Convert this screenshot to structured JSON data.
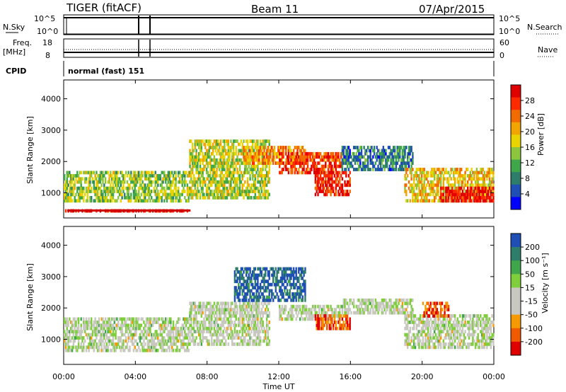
{
  "header": {
    "radar": "TIGER (fitACF)",
    "beam": "Beam 11",
    "date": "07/Apr/2015"
  },
  "top_panels": {
    "nsky_label": "N.Sky",
    "nsearch_label": "N.Search",
    "nsky_ticks": [
      "10^5",
      "10^0"
    ],
    "nsky_ticks_right": [
      "10^5",
      "10^0"
    ],
    "freq_label": "Freq.",
    "freq_unit": "[MHz]",
    "freq_ticks": [
      "18",
      "8"
    ],
    "nave_label": "Nave",
    "nave_ticks": [
      "60",
      "0"
    ],
    "cpid_label": "CPID",
    "cpid_value": "normal (fast) 151"
  },
  "chart_data": [
    {
      "type": "heatmap",
      "panel": "power",
      "xlabel": "",
      "ylabel": "Slant Range [km]",
      "ylim": [
        200,
        4600
      ],
      "yticks": [
        "1000",
        "2000",
        "3000",
        "4000"
      ],
      "colorbar_label": "Power [dB]",
      "colorbar_ticks": [
        "28",
        "24",
        "20",
        "16",
        "12",
        "8",
        "4"
      ],
      "colors": [
        "#0000ff",
        "#1f4fb5",
        "#2e7d6a",
        "#3fa64a",
        "#8cc63f",
        "#e8d500",
        "#f2a400",
        "#f26b00",
        "#ff2a00",
        "#e00000"
      ],
      "bands": [
        {
          "x": [
            0.0,
            7.0
          ],
          "range": [
            700,
            1700
          ],
          "level": 0.45
        },
        {
          "x": [
            0.0,
            7.0
          ],
          "range": [
            380,
            480
          ],
          "level": 0.95
        },
        {
          "x": [
            7.0,
            11.5
          ],
          "range": [
            800,
            2700
          ],
          "level": 0.5
        },
        {
          "x": [
            10.0,
            13.5
          ],
          "range": [
            1900,
            2500
          ],
          "level": 0.7
        },
        {
          "x": [
            12.0,
            15.5
          ],
          "range": [
            1600,
            2300
          ],
          "level": 0.85
        },
        {
          "x": [
            14.0,
            16.0
          ],
          "range": [
            900,
            1700
          ],
          "level": 0.9
        },
        {
          "x": [
            15.5,
            19.5
          ],
          "range": [
            1700,
            2500
          ],
          "level": 0.25
        },
        {
          "x": [
            19.0,
            24.0
          ],
          "range": [
            700,
            1800
          ],
          "level": 0.6
        },
        {
          "x": [
            21.0,
            24.0
          ],
          "range": [
            700,
            1200
          ],
          "level": 0.92
        }
      ]
    },
    {
      "type": "heatmap",
      "panel": "velocity",
      "xlabel": "Time UT",
      "ylabel": "Slant Range [km]",
      "ylim": [
        200,
        4600
      ],
      "yticks": [
        "1000",
        "2000",
        "3000",
        "4000"
      ],
      "xticks": [
        "00:00",
        "04:00",
        "08:00",
        "12:00",
        "16:00",
        "20:00",
        "00:00"
      ],
      "xlim": [
        0,
        24
      ],
      "colorbar_label": "Velocity [m s⁻¹]",
      "colorbar_ticks": [
        "200",
        "100",
        "50",
        "15",
        "-15",
        "-50",
        "-100",
        "-200"
      ],
      "colors": [
        "#e00000",
        "#f25a00",
        "#f59a00",
        "#c8c8c0",
        "#c8c8c0",
        "#7fce3c",
        "#3fa64a",
        "#2e7d6a",
        "#1f4fb5"
      ],
      "bands": [
        {
          "x": [
            0.0,
            7.0
          ],
          "range": [
            600,
            1700
          ],
          "level": 0.5
        },
        {
          "x": [
            7.0,
            11.5
          ],
          "range": [
            800,
            2200
          ],
          "level": 0.5
        },
        {
          "x": [
            9.5,
            13.5
          ],
          "range": [
            2200,
            3300
          ],
          "level": 0.92
        },
        {
          "x": [
            12.0,
            15.5
          ],
          "range": [
            1600,
            2100
          ],
          "level": 0.5
        },
        {
          "x": [
            14.0,
            16.0
          ],
          "range": [
            1300,
            1800
          ],
          "level": 0.15
        },
        {
          "x": [
            15.5,
            19.5
          ],
          "range": [
            1800,
            2300
          ],
          "level": 0.5
        },
        {
          "x": [
            19.0,
            24.0
          ],
          "range": [
            700,
            1800
          ],
          "level": 0.5
        },
        {
          "x": [
            20.0,
            21.5
          ],
          "range": [
            1700,
            2200
          ],
          "level": 0.15
        }
      ]
    }
  ]
}
